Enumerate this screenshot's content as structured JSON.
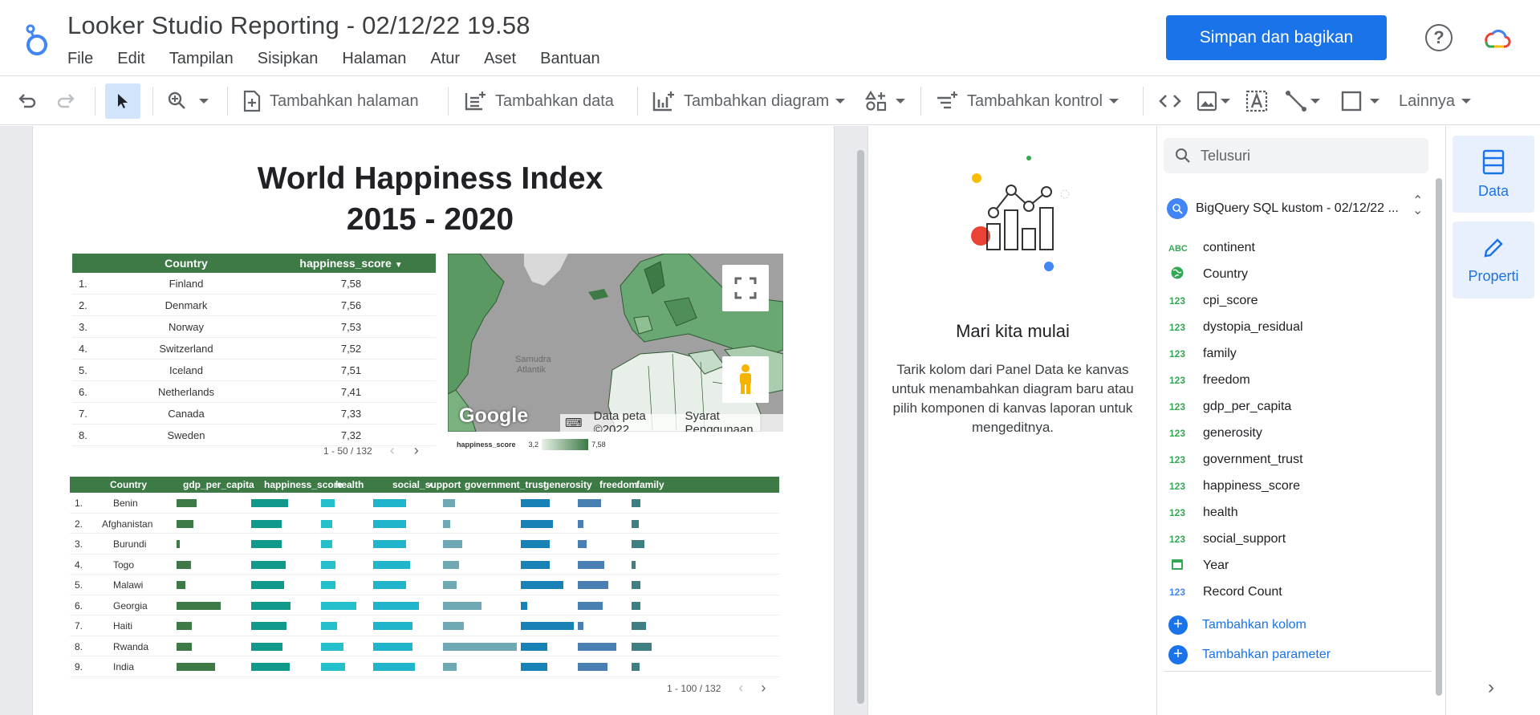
{
  "header": {
    "title": "Looker Studio Reporting - 02/12/22 19.58",
    "menu": [
      "File",
      "Edit",
      "Tampilan",
      "Sisipkan",
      "Halaman",
      "Atur",
      "Aset",
      "Bantuan"
    ],
    "share_label": "Simpan dan bagikan",
    "help_label": "?",
    "cloud_logo_text": "Google Cloud"
  },
  "toolbar": {
    "add_page": "Tambahkan halaman",
    "add_data": "Tambahkan data",
    "add_chart": "Tambahkan diagram",
    "add_control": "Tambahkan kontrol",
    "more": "Lainnya"
  },
  "report": {
    "title_line1": "World Happiness Index",
    "title_line2": "2015 - 2020",
    "table1": {
      "headers": [
        "Country",
        "happiness_score"
      ],
      "rows": [
        {
          "n": "1.",
          "country": "Finland",
          "score": "7,58"
        },
        {
          "n": "2.",
          "country": "Denmark",
          "score": "7,56"
        },
        {
          "n": "3.",
          "country": "Norway",
          "score": "7,53"
        },
        {
          "n": "4.",
          "country": "Switzerland",
          "score": "7,52"
        },
        {
          "n": "5.",
          "country": "Iceland",
          "score": "7,51"
        },
        {
          "n": "6.",
          "country": "Netherlands",
          "score": "7,41"
        },
        {
          "n": "7.",
          "country": "Canada",
          "score": "7,33"
        },
        {
          "n": "8.",
          "country": "Sweden",
          "score": "7,32"
        }
      ],
      "pager": "1 - 50 / 132"
    },
    "map": {
      "ocean_label": "Samudra Atlantik",
      "google": "Google",
      "map_data": "Data peta ©2022",
      "terms": "Syarat Penggunaan",
      "legend_label": "happiness_score",
      "legend_min": "3,2",
      "legend_max": "7,58"
    },
    "table2": {
      "headers": [
        "Country",
        "gdp_per_capita",
        "happiness_score",
        "health",
        "social_support",
        "government_trust",
        "generosity",
        "freedom",
        "family"
      ],
      "rows": [
        {
          "n": "1.",
          "country": "Benin",
          "gdp": 0.28,
          "hs": 0.56,
          "health": 0.28,
          "ss": 0.5,
          "gt": 0.16,
          "gen": 0.55,
          "free": 0.47,
          "fam": 0.36
        },
        {
          "n": "2.",
          "country": "Afghanistan",
          "gdp": 0.24,
          "hs": 0.46,
          "health": 0.24,
          "ss": 0.5,
          "gt": 0.1,
          "gen": 0.6,
          "free": 0.12,
          "fam": 0.3
        },
        {
          "n": "3.",
          "country": "Burundi",
          "gdp": 0.04,
          "hs": 0.46,
          "health": 0.24,
          "ss": 0.5,
          "gt": 0.26,
          "gen": 0.55,
          "free": 0.18,
          "fam": 0.52
        },
        {
          "n": "4.",
          "country": "Togo",
          "gdp": 0.2,
          "hs": 0.52,
          "health": 0.3,
          "ss": 0.56,
          "gt": 0.22,
          "gen": 0.55,
          "free": 0.53,
          "fam": 0.18
        },
        {
          "n": "5.",
          "country": "Malawi",
          "gdp": 0.12,
          "hs": 0.5,
          "health": 0.3,
          "ss": 0.5,
          "gt": 0.18,
          "gen": 0.8,
          "free": 0.62,
          "fam": 0.36
        },
        {
          "n": "6.",
          "country": "Georgia",
          "gdp": 0.62,
          "hs": 0.6,
          "health": 0.74,
          "ss": 0.7,
          "gt": 0.52,
          "gen": 0.12,
          "free": 0.5,
          "fam": 0.36
        },
        {
          "n": "7.",
          "country": "Haiti",
          "gdp": 0.22,
          "hs": 0.54,
          "health": 0.34,
          "ss": 0.6,
          "gt": 0.28,
          "gen": 1.0,
          "free": 0.12,
          "fam": 0.6
        },
        {
          "n": "8.",
          "country": "Rwanda",
          "gdp": 0.22,
          "hs": 0.48,
          "health": 0.46,
          "ss": 0.6,
          "gt": 1.0,
          "gen": 0.5,
          "free": 0.78,
          "fam": 0.84
        },
        {
          "n": "9.",
          "country": "India",
          "gdp": 0.54,
          "hs": 0.58,
          "health": 0.5,
          "ss": 0.64,
          "gt": 0.18,
          "gen": 0.5,
          "free": 0.6,
          "fam": 0.32
        }
      ],
      "pager": "1 - 100 / 132"
    }
  },
  "middle_panel": {
    "heading": "Mari kita mulai",
    "body": "Tarik kolom dari Panel Data ke kanvas untuk menambahkan diagram baru atau pilih komponen di kanvas laporan untuk mengeditnya."
  },
  "data_panel": {
    "search_placeholder": "Telusuri",
    "source": "BigQuery SQL kustom - 02/12/22 ...",
    "fields": [
      {
        "type": "ABC",
        "name": "continent"
      },
      {
        "type": "geo",
        "name": "Country"
      },
      {
        "type": "123",
        "name": "cpi_score"
      },
      {
        "type": "123",
        "name": "dystopia_residual"
      },
      {
        "type": "123",
        "name": "family"
      },
      {
        "type": "123",
        "name": "freedom"
      },
      {
        "type": "123",
        "name": "gdp_per_capita"
      },
      {
        "type": "123",
        "name": "generosity"
      },
      {
        "type": "123",
        "name": "government_trust"
      },
      {
        "type": "123",
        "name": "happiness_score"
      },
      {
        "type": "123",
        "name": "health"
      },
      {
        "type": "123",
        "name": "social_support"
      },
      {
        "type": "date",
        "name": "Year"
      },
      {
        "type": "123b",
        "name": "Record Count"
      }
    ],
    "add_field": "Tambahkan kolom",
    "add_param": "Tambahkan parameter"
  },
  "right_rail": {
    "data_label": "Data",
    "props_label": "Properti"
  },
  "colors": {
    "accent": "#1a73e8",
    "table_header": "#3d7a45",
    "bar_gdp": "#3d7a45",
    "bar_hs": "#119a8c",
    "bar_health": "#26c0cc",
    "bar_ss": "#21b5cc",
    "bar_gt": "#6fa9b4",
    "bar_gen": "#1882b7",
    "bar_free": "#4a7fb3",
    "bar_fam": "#3f7e82"
  }
}
